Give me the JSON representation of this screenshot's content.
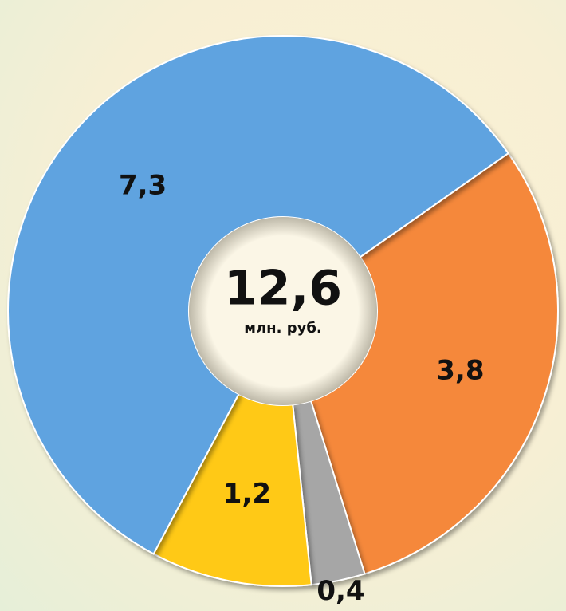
{
  "chart_data": {
    "type": "donut",
    "categories": [
      null,
      null,
      null,
      null
    ],
    "values": [
      3.8,
      0.4,
      1.2,
      7.3
    ],
    "value_labels": [
      "3,8",
      "0,4",
      "1,2",
      "7,3"
    ],
    "colors": [
      "#f5883a",
      "#a6a6a6",
      "#ffc914",
      "#5fa3e0"
    ],
    "center_text": "12,6",
    "center_subtext": "млн. руб."
  }
}
